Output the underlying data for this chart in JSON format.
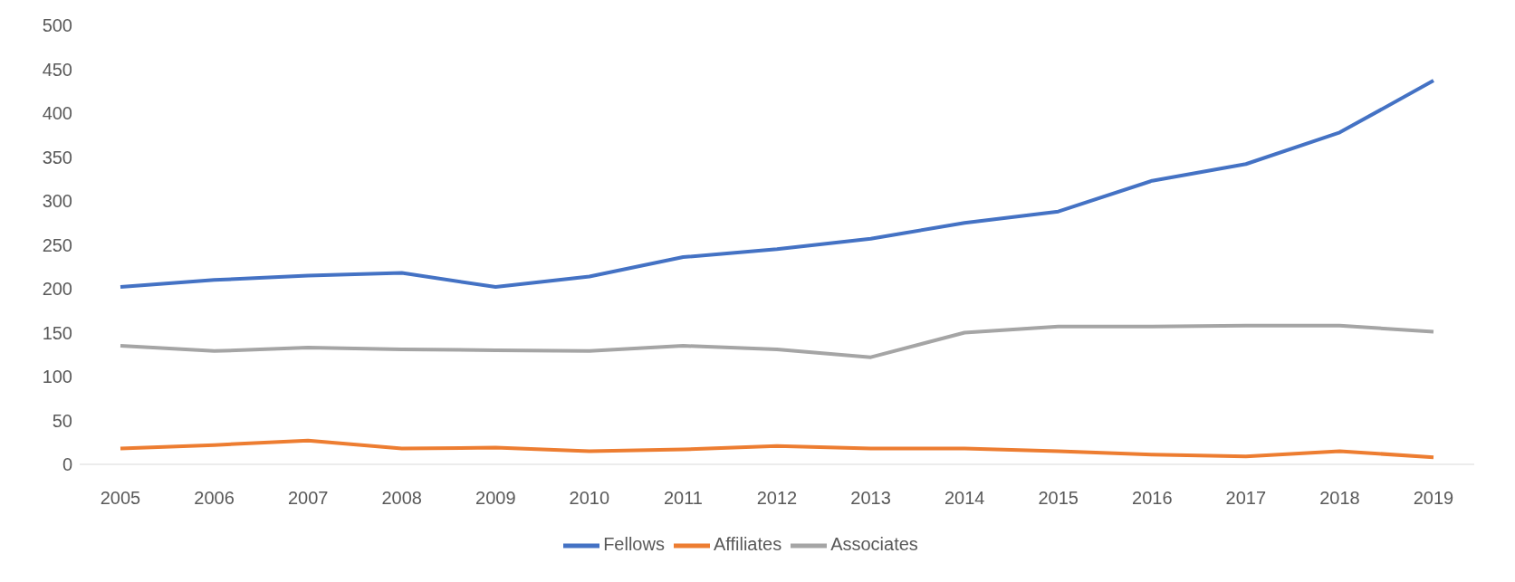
{
  "chart_data": {
    "type": "line",
    "categories": [
      "2005",
      "2006",
      "2007",
      "2008",
      "2009",
      "2010",
      "2011",
      "2012",
      "2013",
      "2014",
      "2015",
      "2016",
      "2017",
      "2018",
      "2019"
    ],
    "series": [
      {
        "name": "Fellows",
        "color": "#4472c4",
        "values": [
          202,
          210,
          215,
          218,
          202,
          214,
          236,
          245,
          257,
          275,
          288,
          323,
          342,
          378,
          437
        ]
      },
      {
        "name": "Affiliates",
        "color": "#ed7d31",
        "values": [
          18,
          22,
          27,
          18,
          19,
          15,
          17,
          21,
          18,
          18,
          15,
          11,
          9,
          15,
          8
        ]
      },
      {
        "name": "Associates",
        "color": "#a5a5a5",
        "values": [
          135,
          129,
          133,
          131,
          130,
          129,
          135,
          131,
          122,
          150,
          157,
          157,
          158,
          158,
          151
        ]
      }
    ],
    "ylim": [
      0,
      500
    ],
    "yticks": [
      0,
      50,
      100,
      150,
      200,
      250,
      300,
      350,
      400,
      450,
      500
    ],
    "legend": "bottom",
    "marker": "none"
  }
}
